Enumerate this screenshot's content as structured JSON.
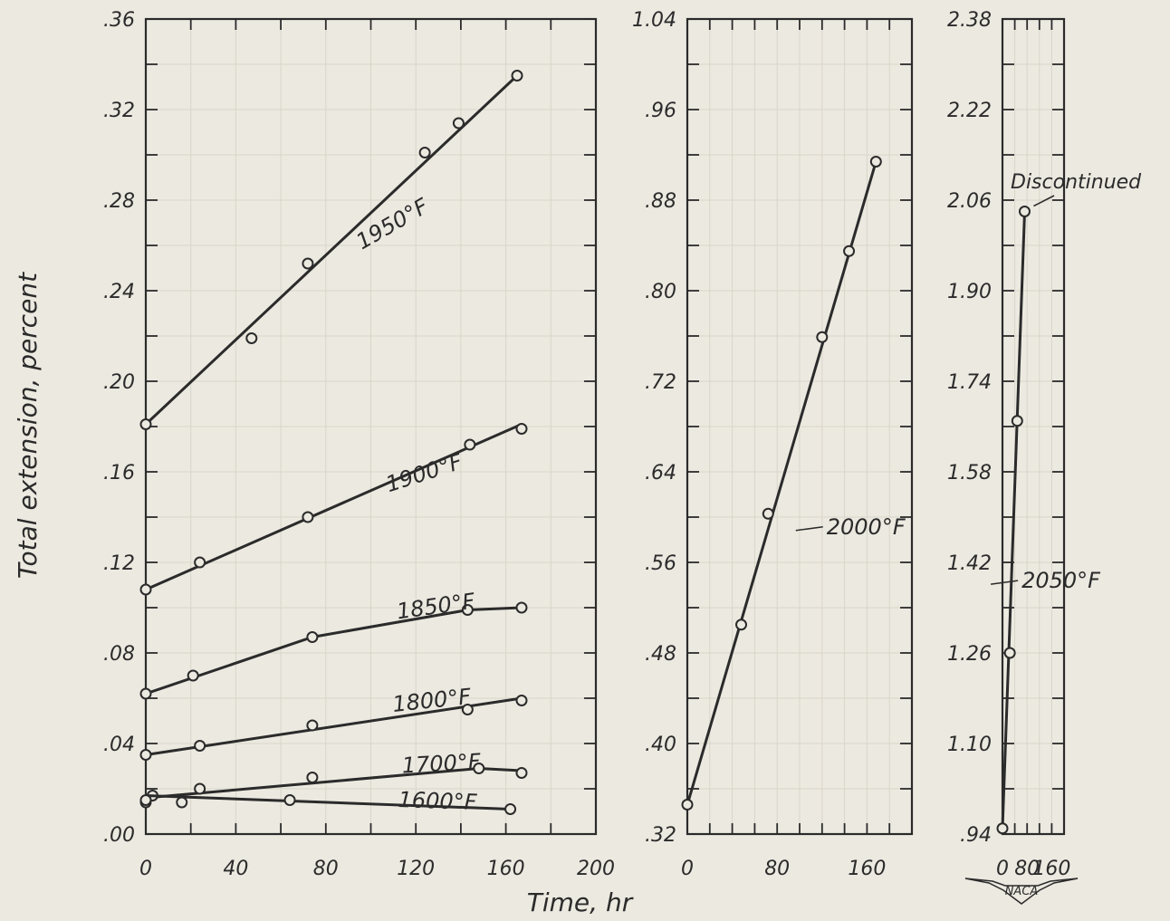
{
  "figure": {
    "xlabel": "Time, hr",
    "ylabel": "Total extension, percent",
    "logo_text": "NACA",
    "ink_color": "#2b2b2b",
    "paper_color": "#ece9e0",
    "grid_color": "#d9d5ca"
  },
  "chart_data": [
    {
      "type": "line",
      "panel": "left",
      "xlim": [
        0,
        200
      ],
      "ylim": [
        0,
        0.36
      ],
      "xticks": [
        0,
        20,
        40,
        60,
        80,
        100,
        120,
        140,
        160,
        180,
        200
      ],
      "xtick_labels": [
        "0",
        "40",
        "80",
        "120",
        "160",
        "200"
      ],
      "yticks": [
        0,
        0.02,
        0.04,
        0.06,
        0.08,
        0.1,
        0.12,
        0.14,
        0.16,
        0.18,
        0.2,
        0.22,
        0.24,
        0.26,
        0.28,
        0.3,
        0.32,
        0.34,
        0.36
      ],
      "ytick_labels": [
        ".00",
        ".04",
        ".08",
        ".12",
        ".16",
        ".20",
        ".24",
        ".28",
        ".32",
        ".36"
      ],
      "grid": false,
      "series": [
        {
          "name": "1950°F",
          "points": [
            [
              0,
              0.181
            ],
            [
              47,
              0.219
            ],
            [
              72,
              0.252
            ],
            [
              124,
              0.301
            ],
            [
              139,
              0.314
            ],
            [
              165,
              0.335
            ]
          ],
          "fit": [
            [
              0,
              0.181
            ],
            [
              165,
              0.335
            ]
          ]
        },
        {
          "name": "1900°F",
          "points": [
            [
              0,
              0.108
            ],
            [
              24,
              0.12
            ],
            [
              72,
              0.14
            ],
            [
              144,
              0.172
            ],
            [
              167,
              0.179
            ]
          ],
          "fit": [
            [
              0,
              0.108
            ],
            [
              167,
              0.181
            ]
          ]
        },
        {
          "name": "1850°F",
          "points": [
            [
              0,
              0.062
            ],
            [
              21,
              0.07
            ],
            [
              74,
              0.087
            ],
            [
              143,
              0.099
            ],
            [
              167,
              0.1
            ]
          ],
          "fit": [
            [
              0,
              0.062
            ],
            [
              74,
              0.087
            ],
            [
              143,
              0.099
            ],
            [
              167,
              0.1
            ]
          ]
        },
        {
          "name": "1800°F",
          "points": [
            [
              0,
              0.035
            ],
            [
              24,
              0.039
            ],
            [
              74,
              0.048
            ],
            [
              143,
              0.055
            ],
            [
              167,
              0.059
            ]
          ],
          "fit": [
            [
              0,
              0.035
            ],
            [
              167,
              0.06
            ]
          ]
        },
        {
          "name": "1700°F",
          "points": [
            [
              0,
              0.014
            ],
            [
              3,
              0.017
            ],
            [
              24,
              0.02
            ],
            [
              74,
              0.025
            ],
            [
              148,
              0.029
            ],
            [
              167,
              0.027
            ]
          ],
          "fit": [
            [
              0,
              0.016
            ],
            [
              148,
              0.029
            ],
            [
              167,
              0.028
            ]
          ]
        },
        {
          "name": "1600°F",
          "points": [
            [
              0,
              0.015
            ],
            [
              16,
              0.014
            ],
            [
              64,
              0.015
            ],
            [
              162,
              0.011
            ]
          ],
          "fit": [
            [
              0,
              0.017
            ],
            [
              162,
              0.011
            ]
          ]
        }
      ]
    },
    {
      "type": "line",
      "panel": "middle",
      "xlim": [
        0,
        200
      ],
      "ylim": [
        0.32,
        1.04
      ],
      "xticks": [
        0,
        20,
        40,
        60,
        80,
        100,
        120,
        140,
        160,
        180,
        200
      ],
      "xtick_labels": [
        "0",
        "80",
        "160"
      ],
      "yticks": [
        0.32,
        0.36,
        0.4,
        0.44,
        0.48,
        0.52,
        0.56,
        0.6,
        0.64,
        0.68,
        0.72,
        0.76,
        0.8,
        0.84,
        0.88,
        0.92,
        0.96,
        1.0,
        1.04
      ],
      "ytick_labels": [
        ".32",
        ".40",
        ".48",
        ".56",
        ".64",
        ".72",
        ".80",
        ".88",
        ".96",
        "1.04"
      ],
      "grid": false,
      "series": [
        {
          "name": "2000°F",
          "points": [
            [
              0,
              0.346
            ],
            [
              48,
              0.505
            ],
            [
              72,
              0.603
            ],
            [
              120,
              0.759
            ],
            [
              144,
              0.835
            ],
            [
              168,
              0.914
            ]
          ],
          "fit": [
            [
              0,
              0.346
            ],
            [
              168,
              0.914
            ]
          ]
        }
      ]
    },
    {
      "type": "line",
      "panel": "right",
      "xlim": [
        0,
        200
      ],
      "ylim": [
        0.94,
        2.38
      ],
      "xticks": [
        0,
        40,
        80,
        120,
        160,
        200
      ],
      "xtick_labels": [
        "0",
        "80",
        "160"
      ],
      "yticks": [
        0.94,
        1.02,
        1.1,
        1.18,
        1.26,
        1.34,
        1.42,
        1.5,
        1.58,
        1.66,
        1.74,
        1.82,
        1.9,
        1.98,
        2.06,
        2.14,
        2.22,
        2.3,
        2.38
      ],
      "ytick_labels": [
        ".94",
        "1.10",
        "1.26",
        "1.42",
        "1.58",
        "1.74",
        "1.90",
        "2.06",
        "2.22",
        "2.38"
      ],
      "grid": false,
      "series": [
        {
          "name": "2050°F",
          "points": [
            [
              0,
              0.95
            ],
            [
              24,
              1.26
            ],
            [
              48,
              1.67
            ],
            [
              72,
              2.04
            ]
          ],
          "fit": [
            [
              0,
              0.95
            ],
            [
              72,
              2.04
            ]
          ]
        }
      ],
      "annotations": [
        {
          "text": "Discontinued",
          "x": 72,
          "y": 2.04
        }
      ]
    }
  ]
}
